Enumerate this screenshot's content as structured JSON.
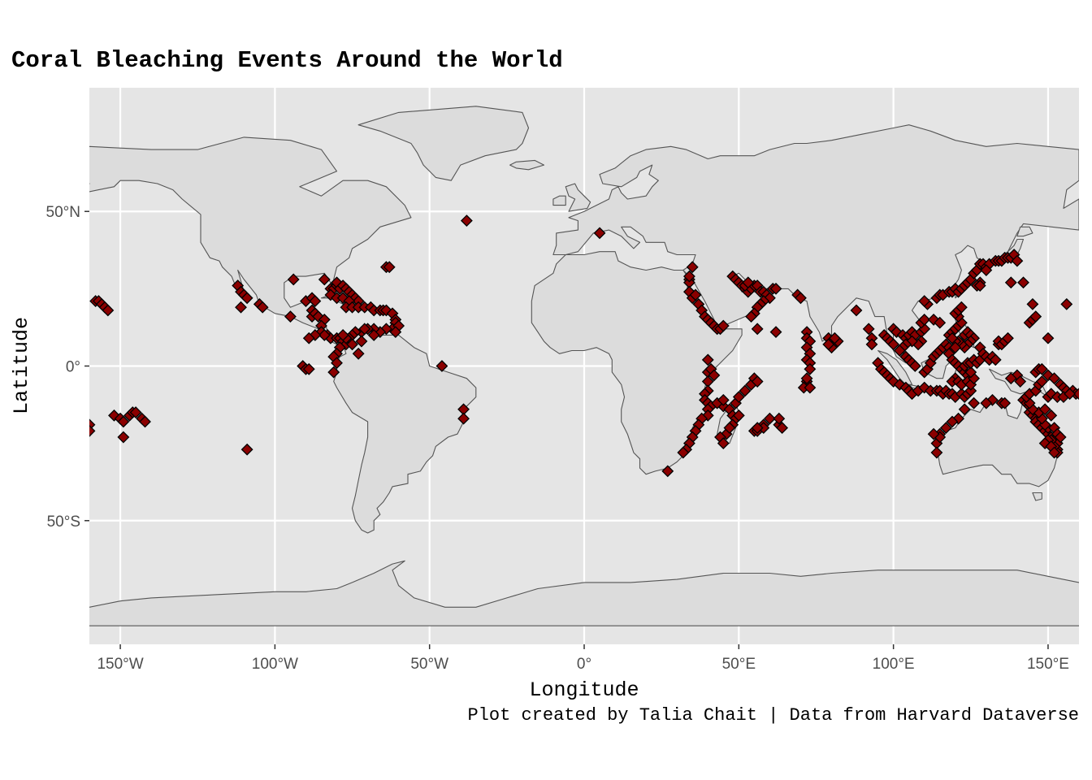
{
  "title": "Coral Bleaching Events Around the World",
  "caption": "Plot created by Talia Chait | Data from Harvard Dataverse",
  "colors": {
    "panel_background": "#e5e5e5",
    "grid": "#ffffff",
    "land_fill": "#dcdcdc",
    "land_border": "#555555",
    "point_fill": "#8b0000",
    "point_border": "#000000"
  },
  "chart_data": {
    "type": "scatter",
    "marker": "diamond",
    "title": "Coral Bleaching Events Around the World",
    "xlabel": "Longitude",
    "ylabel": "Latitude",
    "xlim": [
      -160,
      160
    ],
    "ylim": [
      -90,
      90
    ],
    "grid": true,
    "x_ticks": [
      {
        "value": -150,
        "label": "150°W"
      },
      {
        "value": -100,
        "label": "100°W"
      },
      {
        "value": -50,
        "label": "50°W"
      },
      {
        "value": 0,
        "label": "0°"
      },
      {
        "value": 50,
        "label": "50°E"
      },
      {
        "value": 100,
        "label": "100°E"
      },
      {
        "value": 150,
        "label": "150°E"
      }
    ],
    "y_ticks": [
      {
        "value": 50,
        "label": "50°N"
      },
      {
        "value": 0,
        "label": "0°"
      },
      {
        "value": -50,
        "label": "50°S"
      }
    ],
    "points": [
      [
        -158,
        21
      ],
      [
        -157,
        21
      ],
      [
        -156,
        20
      ],
      [
        -155,
        19
      ],
      [
        -154,
        18
      ],
      [
        -160,
        -19
      ],
      [
        -160,
        -21
      ],
      [
        -152,
        -16
      ],
      [
        -150,
        -17
      ],
      [
        -149,
        -18
      ],
      [
        -147,
        -16
      ],
      [
        -146,
        -15
      ],
      [
        -145,
        -15
      ],
      [
        -143,
        -17
      ],
      [
        -142,
        -18
      ],
      [
        -149,
        -23
      ],
      [
        -109,
        -27
      ],
      [
        -112,
        26
      ],
      [
        -111,
        24
      ],
      [
        -110,
        23
      ],
      [
        -109,
        22
      ],
      [
        -111,
        19
      ],
      [
        -105,
        20
      ],
      [
        -104,
        19
      ],
      [
        -94,
        28
      ],
      [
        -95,
        16
      ],
      [
        -90,
        21
      ],
      [
        -88,
        22
      ],
      [
        -87,
        21
      ],
      [
        -88,
        18
      ],
      [
        -88,
        16
      ],
      [
        -87,
        17
      ],
      [
        -86,
        16
      ],
      [
        -84,
        15
      ],
      [
        -85,
        13
      ],
      [
        -83,
        10
      ],
      [
        -82,
        9
      ],
      [
        -80,
        9
      ],
      [
        -79,
        9
      ],
      [
        -78,
        8
      ],
      [
        -77,
        7
      ],
      [
        -79,
        6
      ],
      [
        -80,
        4
      ],
      [
        -81,
        3
      ],
      [
        -80,
        1
      ],
      [
        -84,
        28
      ],
      [
        -82,
        25
      ],
      [
        -81,
        25
      ],
      [
        -80,
        26
      ],
      [
        -80,
        27
      ],
      [
        -79,
        25
      ],
      [
        -78,
        26
      ],
      [
        -77,
        25
      ],
      [
        -76,
        24
      ],
      [
        -75,
        23
      ],
      [
        -74,
        22
      ],
      [
        -73,
        21
      ],
      [
        -82,
        23
      ],
      [
        -80,
        22
      ],
      [
        -78,
        22
      ],
      [
        -76,
        21
      ],
      [
        -77,
        19
      ],
      [
        -75,
        19
      ],
      [
        -73,
        19
      ],
      [
        -71,
        19
      ],
      [
        -69,
        19
      ],
      [
        -68,
        18
      ],
      [
        -66,
        18
      ],
      [
        -65,
        18
      ],
      [
        -64,
        18
      ],
      [
        -62,
        17
      ],
      [
        -61,
        15
      ],
      [
        -61,
        14
      ],
      [
        -62,
        12
      ],
      [
        -64,
        12
      ],
      [
        -66,
        11
      ],
      [
        -68,
        12
      ],
      [
        -70,
        12
      ],
      [
        -72,
        11
      ],
      [
        -74,
        11
      ],
      [
        -75,
        10
      ],
      [
        -76,
        9
      ],
      [
        -77,
        9
      ],
      [
        -85,
        11
      ],
      [
        -84,
        10
      ],
      [
        -87,
        10
      ],
      [
        -89,
        9
      ],
      [
        -64,
        32
      ],
      [
        -63,
        32
      ],
      [
        -78,
        10
      ],
      [
        -75,
        7
      ],
      [
        -72,
        8
      ],
      [
        -73,
        4
      ],
      [
        -71,
        12
      ],
      [
        -68,
        10
      ],
      [
        -60,
        13
      ],
      [
        -61,
        11
      ],
      [
        -91,
        0
      ],
      [
        -90,
        -1
      ],
      [
        -89,
        -1
      ],
      [
        -81,
        -2
      ],
      [
        -46,
        0
      ],
      [
        -39,
        -14
      ],
      [
        -39,
        -17
      ],
      [
        -38,
        47
      ],
      [
        5,
        43
      ],
      [
        34,
        28
      ],
      [
        34,
        27
      ],
      [
        34,
        24
      ],
      [
        35,
        22
      ],
      [
        34,
        29
      ],
      [
        35,
        32
      ],
      [
        36,
        23
      ],
      [
        37,
        20
      ],
      [
        38,
        18
      ],
      [
        39,
        16
      ],
      [
        40,
        15
      ],
      [
        41,
        14
      ],
      [
        42,
        13
      ],
      [
        43,
        12
      ],
      [
        44,
        12
      ],
      [
        45,
        13
      ],
      [
        48,
        29
      ],
      [
        49,
        28
      ],
      [
        50,
        27
      ],
      [
        51,
        26
      ],
      [
        52,
        25
      ],
      [
        53,
        24
      ],
      [
        54,
        25
      ],
      [
        55,
        26
      ],
      [
        56,
        26
      ],
      [
        57,
        24
      ],
      [
        58,
        24
      ],
      [
        59,
        23
      ],
      [
        60,
        22
      ],
      [
        58,
        21
      ],
      [
        57,
        20
      ],
      [
        56,
        19
      ],
      [
        55,
        17
      ],
      [
        54,
        16
      ],
      [
        61,
        25
      ],
      [
        62,
        25
      ],
      [
        52,
        26
      ],
      [
        53,
        27
      ],
      [
        62,
        11
      ],
      [
        56,
        12
      ],
      [
        40,
        -2
      ],
      [
        40,
        -5
      ],
      [
        40,
        -8
      ],
      [
        39,
        -9
      ],
      [
        39,
        -11
      ],
      [
        40,
        -12
      ],
      [
        41,
        -13
      ],
      [
        40,
        -14
      ],
      [
        40,
        -16
      ],
      [
        38,
        -17
      ],
      [
        37,
        -19
      ],
      [
        36,
        -21
      ],
      [
        35,
        -23
      ],
      [
        34,
        -25
      ],
      [
        33,
        -27
      ],
      [
        32,
        -28
      ],
      [
        27,
        -34
      ],
      [
        40,
        2
      ],
      [
        41,
        -1
      ],
      [
        42,
        -3
      ],
      [
        44,
        -12
      ],
      [
        45,
        -13
      ],
      [
        47,
        -14
      ],
      [
        48,
        -16
      ],
      [
        49,
        -17
      ],
      [
        50,
        -16
      ],
      [
        48,
        -19
      ],
      [
        46,
        -22
      ],
      [
        44,
        -23
      ],
      [
        45,
        -25
      ],
      [
        47,
        -20
      ],
      [
        49,
        -12
      ],
      [
        50,
        -10
      ],
      [
        52,
        -8
      ],
      [
        54,
        -6
      ],
      [
        55,
        -4
      ],
      [
        56,
        -5
      ],
      [
        43,
        -12
      ],
      [
        45,
        -11
      ],
      [
        55,
        -21
      ],
      [
        57,
        -20
      ],
      [
        58,
        -19
      ],
      [
        56,
        -21
      ],
      [
        63,
        -19
      ],
      [
        64,
        -20
      ],
      [
        60,
        -17
      ],
      [
        63,
        -17
      ],
      [
        58,
        -20
      ],
      [
        56,
        -20
      ],
      [
        69,
        23
      ],
      [
        70,
        22
      ],
      [
        72,
        11
      ],
      [
        72,
        9
      ],
      [
        73,
        8
      ],
      [
        72,
        6
      ],
      [
        73,
        4
      ],
      [
        72,
        2
      ],
      [
        73,
        1
      ],
      [
        73,
        -1
      ],
      [
        72,
        -5
      ],
      [
        71,
        -7
      ],
      [
        73,
        -7
      ],
      [
        72,
        -4
      ],
      [
        79,
        9
      ],
      [
        80,
        8
      ],
      [
        81,
        7
      ],
      [
        82,
        8
      ],
      [
        80,
        6
      ],
      [
        81,
        9
      ],
      [
        79,
        7
      ],
      [
        88,
        18
      ],
      [
        92,
        12
      ],
      [
        93,
        9
      ],
      [
        93,
        7
      ],
      [
        97,
        10
      ],
      [
        98,
        9
      ],
      [
        99,
        8
      ],
      [
        100,
        7
      ],
      [
        100,
        12
      ],
      [
        101,
        11
      ],
      [
        103,
        10
      ],
      [
        104,
        9
      ],
      [
        105,
        10
      ],
      [
        106,
        11
      ],
      [
        107,
        10
      ],
      [
        109,
        11
      ],
      [
        110,
        12
      ],
      [
        109,
        14
      ],
      [
        110,
        15
      ],
      [
        109,
        8
      ],
      [
        108,
        7
      ],
      [
        106,
        8
      ],
      [
        104,
        7
      ],
      [
        103,
        6
      ],
      [
        102,
        5
      ],
      [
        104,
        3
      ],
      [
        105,
        2
      ],
      [
        106,
        1
      ],
      [
        107,
        0
      ],
      [
        95,
        1
      ],
      [
        96,
        -1
      ],
      [
        97,
        -2
      ],
      [
        98,
        -3
      ],
      [
        99,
        -4
      ],
      [
        100,
        -5
      ],
      [
        102,
        -6
      ],
      [
        104,
        -7
      ],
      [
        105,
        -8
      ],
      [
        106,
        -9
      ],
      [
        108,
        -8
      ],
      [
        110,
        -7
      ],
      [
        112,
        -8
      ],
      [
        114,
        -8
      ],
      [
        115,
        -8
      ],
      [
        116,
        -9
      ],
      [
        117,
        -8
      ],
      [
        118,
        -9
      ],
      [
        119,
        -9
      ],
      [
        120,
        -10
      ],
      [
        122,
        -9
      ],
      [
        123,
        -10
      ],
      [
        124,
        -9
      ],
      [
        125,
        -8
      ],
      [
        110,
        -2
      ],
      [
        111,
        -1
      ],
      [
        112,
        1
      ],
      [
        113,
        3
      ],
      [
        114,
        4
      ],
      [
        115,
        5
      ],
      [
        116,
        6
      ],
      [
        117,
        7
      ],
      [
        118,
        6
      ],
      [
        119,
        5
      ],
      [
        118,
        4
      ],
      [
        119,
        2
      ],
      [
        120,
        1
      ],
      [
        121,
        0
      ],
      [
        122,
        -1
      ],
      [
        123,
        -2
      ],
      [
        124,
        -3
      ],
      [
        120,
        -4
      ],
      [
        119,
        -5
      ],
      [
        121,
        -5
      ],
      [
        122,
        -6
      ],
      [
        124,
        -5
      ],
      [
        125,
        -6
      ],
      [
        126,
        -4
      ],
      [
        125,
        -2
      ],
      [
        123,
        0
      ],
      [
        124,
        1
      ],
      [
        125,
        1
      ],
      [
        126,
        2
      ],
      [
        127,
        1
      ],
      [
        128,
        2
      ],
      [
        118,
        10
      ],
      [
        119,
        11
      ],
      [
        120,
        12
      ],
      [
        121,
        13
      ],
      [
        122,
        14
      ],
      [
        121,
        16
      ],
      [
        120,
        17
      ],
      [
        121,
        18
      ],
      [
        122,
        19
      ],
      [
        123,
        10
      ],
      [
        124,
        11
      ],
      [
        125,
        10
      ],
      [
        126,
        9
      ],
      [
        125,
        8
      ],
      [
        124,
        7
      ],
      [
        123,
        6
      ],
      [
        122,
        7
      ],
      [
        121,
        8
      ],
      [
        120,
        8
      ],
      [
        119,
        9
      ],
      [
        120,
        6
      ],
      [
        114,
        22
      ],
      [
        115,
        23
      ],
      [
        116,
        23
      ],
      [
        118,
        24
      ],
      [
        119,
        24
      ],
      [
        120,
        25
      ],
      [
        121,
        24
      ],
      [
        122,
        25
      ],
      [
        123,
        26
      ],
      [
        124,
        27
      ],
      [
        125,
        28
      ],
      [
        126,
        30
      ],
      [
        127,
        31
      ],
      [
        128,
        33
      ],
      [
        129,
        33
      ],
      [
        130,
        32
      ],
      [
        131,
        33
      ],
      [
        133,
        34
      ],
      [
        134,
        34
      ],
      [
        135,
        34
      ],
      [
        136,
        35
      ],
      [
        137,
        35
      ],
      [
        138,
        35
      ],
      [
        139,
        36
      ],
      [
        140,
        34
      ],
      [
        128,
        27
      ],
      [
        127,
        26
      ],
      [
        128,
        26
      ],
      [
        130,
        31
      ],
      [
        138,
        27
      ],
      [
        142,
        27
      ],
      [
        113,
        15
      ],
      [
        115,
        14
      ],
      [
        111,
        20
      ],
      [
        110,
        21
      ],
      [
        128,
        6
      ],
      [
        129,
        4
      ],
      [
        130,
        3
      ],
      [
        131,
        2
      ],
      [
        132,
        3
      ],
      [
        133,
        2
      ],
      [
        134,
        7
      ],
      [
        134,
        8
      ],
      [
        135,
        7
      ],
      [
        136,
        8
      ],
      [
        137,
        9
      ],
      [
        132,
        -11
      ],
      [
        135,
        -12
      ],
      [
        136,
        -12
      ],
      [
        130,
        -12
      ],
      [
        126,
        -12
      ],
      [
        123,
        -14
      ],
      [
        121,
        -17
      ],
      [
        119,
        -18
      ],
      [
        117,
        -20
      ],
      [
        115,
        -22
      ],
      [
        114,
        -25
      ],
      [
        114,
        -28
      ],
      [
        115,
        -23
      ],
      [
        113,
        -22
      ],
      [
        142,
        -11
      ],
      [
        143,
        -12
      ],
      [
        144,
        -13
      ],
      [
        144,
        -15
      ],
      [
        145,
        -16
      ],
      [
        146,
        -17
      ],
      [
        146,
        -18
      ],
      [
        147,
        -19
      ],
      [
        148,
        -20
      ],
      [
        149,
        -21
      ],
      [
        150,
        -22
      ],
      [
        151,
        -23
      ],
      [
        152,
        -24
      ],
      [
        153,
        -25
      ],
      [
        153,
        -27
      ],
      [
        153,
        -28
      ],
      [
        152,
        -26
      ],
      [
        150,
        -20
      ],
      [
        149,
        -19
      ],
      [
        148,
        -17
      ],
      [
        147,
        -15
      ],
      [
        145,
        -14
      ],
      [
        144,
        -12
      ],
      [
        143,
        -10
      ],
      [
        144,
        -9
      ],
      [
        146,
        -8
      ],
      [
        147,
        -6
      ],
      [
        148,
        -5
      ],
      [
        150,
        -3
      ],
      [
        152,
        -4
      ],
      [
        154,
        -6
      ],
      [
        155,
        -7
      ],
      [
        156,
        -8
      ],
      [
        158,
        -8
      ],
      [
        159,
        -9
      ],
      [
        160,
        -9
      ],
      [
        150,
        -10
      ],
      [
        151,
        -9
      ],
      [
        153,
        -10
      ],
      [
        155,
        -10
      ],
      [
        157,
        -9
      ],
      [
        146,
        -2
      ],
      [
        147,
        -1
      ],
      [
        148,
        -1
      ],
      [
        150,
        9
      ],
      [
        144,
        14
      ],
      [
        145,
        15
      ],
      [
        146,
        16
      ],
      [
        145,
        20
      ],
      [
        156,
        20
      ],
      [
        151,
        -16
      ],
      [
        149,
        -14
      ],
      [
        152,
        -20
      ],
      [
        151,
        -24
      ],
      [
        153,
        -22
      ],
      [
        154,
        -23
      ],
      [
        150,
        -24
      ],
      [
        149,
        -25
      ],
      [
        151,
        -26
      ],
      [
        152,
        -28
      ],
      [
        140,
        -3
      ],
      [
        141,
        -5
      ],
      [
        138,
        -4
      ]
    ]
  }
}
